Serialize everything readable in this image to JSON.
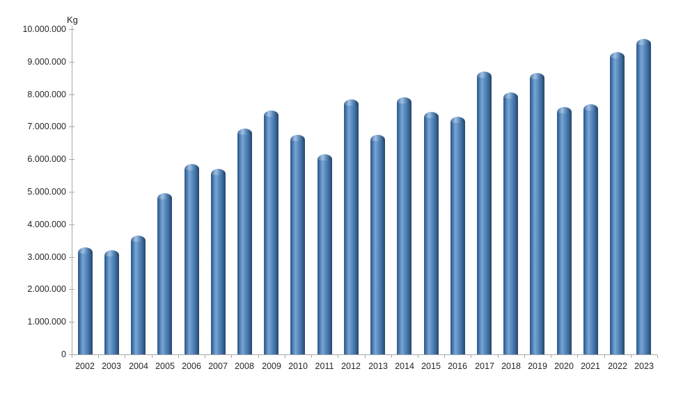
{
  "chart_data": {
    "type": "bar",
    "style": "3d-cylinder-columns",
    "title": "",
    "unit_label": "Kg",
    "xlabel": "",
    "ylabel": "Kg",
    "categories": [
      "2002",
      "2003",
      "2004",
      "2005",
      "2006",
      "2007",
      "2008",
      "2009",
      "2010",
      "2011",
      "2012",
      "2013",
      "2014",
      "2015",
      "2016",
      "2017",
      "2018",
      "2019",
      "2020",
      "2021",
      "2022",
      "2023"
    ],
    "values": [
      3300000,
      3200000,
      3650000,
      4950000,
      5850000,
      5700000,
      6950000,
      7500000,
      6750000,
      6150000,
      7850000,
      6750000,
      7900000,
      7450000,
      7300000,
      8700000,
      8050000,
      8650000,
      7600000,
      7700000,
      9300000,
      9700000
    ],
    "ylim": [
      0,
      10000000
    ],
    "ytick_interval": 1000000,
    "ytick_labels": [
      "0",
      "1.000.000",
      "2.000.000",
      "3.000.000",
      "4.000.000",
      "5.000.000",
      "6.000.000",
      "7.000.000",
      "8.000.000",
      "9.000.000",
      "10.000.000"
    ],
    "grid": false,
    "legend": "none",
    "colors": {
      "bar_mid": "#4d80b4",
      "bar_highlight": "#7aa4d4",
      "bar_shadow": "#274a70",
      "bar_bottom": "#17344f",
      "axis": "#a6a6a6",
      "text": "#262626",
      "background": "#ffffff"
    }
  }
}
